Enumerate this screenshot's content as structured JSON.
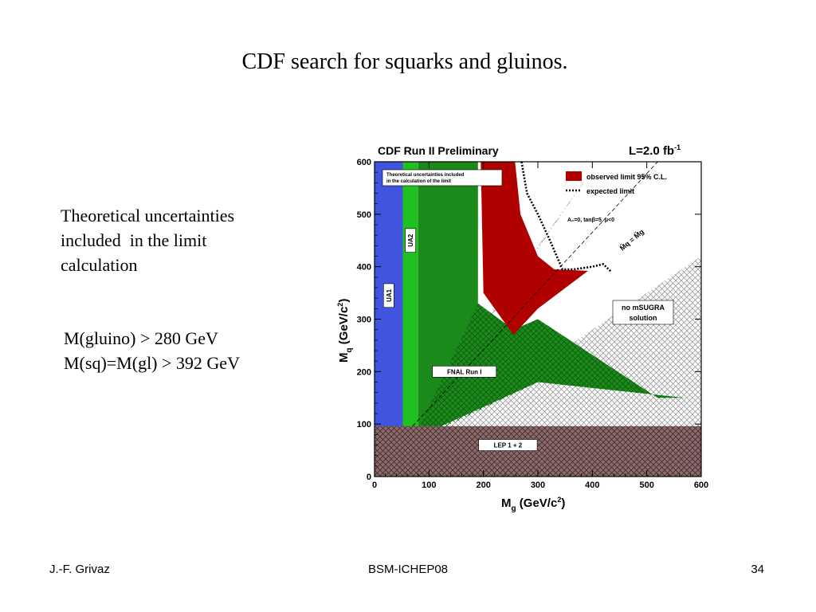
{
  "slide": {
    "title": "CDF search for squarks and gluinos.",
    "note_lines": [
      "Theoretical uncertainties",
      "included  in the limit",
      "calculation"
    ],
    "limit_lines": [
      "M(gluino) > 280 GeV",
      "M(sq)=M(gl) > 392 GeV"
    ],
    "footer": {
      "author": "J.-F. Grivaz",
      "center": "BSM-ICHEP08",
      "page": "34"
    }
  },
  "chart_data": {
    "type": "area",
    "title": "CDF Run II Preliminary",
    "luminosity": "L=2.0 fb",
    "luminosity_sup": "-1",
    "xlabel": "M",
    "xlabel_sub": "g",
    "xlabel_unit": "(GeV/c",
    "ylabel": "M",
    "ylabel_sub": "q",
    "ylabel_unit": "(GeV/c",
    "xlim": [
      0,
      600
    ],
    "ylim": [
      0,
      600
    ],
    "xticks": [
      "0",
      "100",
      "200",
      "300",
      "400",
      "500",
      "600"
    ],
    "yticks": [
      "0",
      "100",
      "200",
      "300",
      "400",
      "500",
      "600"
    ],
    "note_box_lines": [
      "Theoretical uncertainties included",
      "in the calculation of the limit"
    ],
    "legend": {
      "position": "top-right",
      "observed": "observed limit 95% C.L.",
      "expected": "expected limit",
      "params": "A₀=0, tanβ=5, μ<0"
    },
    "diagonal_label": "M̃q = M̃g",
    "colors": {
      "ua1": "#3f55e0",
      "ua2": "#20c020",
      "fnal": "#1a8a1a",
      "observed": "#b00000",
      "lep": "#8e6a6a",
      "hatch": "#bbbbbb"
    },
    "regions": [
      {
        "name": "UA1",
        "label": "UA1",
        "color": "ua1",
        "points": [
          [
            0,
            0
          ],
          [
            0,
            600
          ],
          [
            52,
            600
          ],
          [
            52,
            0
          ]
        ]
      },
      {
        "name": "UA2",
        "label": "UA2",
        "color": "ua2",
        "points": [
          [
            52,
            0
          ],
          [
            52,
            600
          ],
          [
            80,
            600
          ],
          [
            80,
            0
          ]
        ]
      },
      {
        "name": "FNAL Run I",
        "label": "FNAL Run I",
        "color": "fnal",
        "points": [
          [
            80,
            600
          ],
          [
            190,
            600
          ],
          [
            190,
            330
          ],
          [
            255,
            280
          ],
          [
            300,
            300
          ],
          [
            520,
            150
          ],
          [
            570,
            150
          ],
          [
            300,
            180
          ],
          [
            110,
            90
          ],
          [
            80,
            90
          ]
        ]
      },
      {
        "name": "observed",
        "label": "",
        "color": "observed",
        "points": [
          [
            195,
            600
          ],
          [
            258,
            600
          ],
          [
            268,
            500
          ],
          [
            300,
            420
          ],
          [
            330,
            395
          ],
          [
            392,
            392
          ],
          [
            300,
            320
          ],
          [
            255,
            270
          ],
          [
            200,
            350
          ]
        ]
      },
      {
        "name": "LEP 1 + 2",
        "label": "LEP 1 + 2",
        "color": "lep",
        "points": [
          [
            0,
            0
          ],
          [
            600,
            0
          ],
          [
            600,
            96
          ],
          [
            0,
            96
          ]
        ]
      }
    ],
    "hatched_regions": [
      {
        "name": "no-msugra",
        "points": [
          [
            600,
            600
          ],
          [
            600,
            0
          ],
          [
            0,
            0
          ],
          [
            0,
            0
          ],
          [
            600,
            420
          ]
        ]
      },
      {
        "name": "low-mass",
        "points": [
          [
            0,
            0
          ],
          [
            0,
            96
          ],
          [
            70,
            96
          ],
          [
            80,
            100
          ],
          [
            410,
            600
          ]
        ]
      }
    ],
    "expected_limit": [
      [
        270,
        600
      ],
      [
        280,
        540
      ],
      [
        300,
        500
      ],
      [
        320,
        455
      ],
      [
        345,
        395
      ],
      [
        365,
        395
      ],
      [
        400,
        400
      ],
      [
        420,
        405
      ],
      [
        435,
        390
      ]
    ],
    "no_msugra_lines": [
      "no mSUGRA",
      "solution"
    ]
  }
}
